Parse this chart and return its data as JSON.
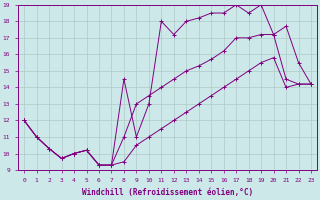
{
  "xlabel": "Windchill (Refroidissement éolien,°C)",
  "bg_color": "#cce8e8",
  "line_color": "#800080",
  "grid_color": "#b0c8c8",
  "xlim": [
    -0.5,
    23.5
  ],
  "ylim": [
    9,
    19
  ],
  "xticks": [
    0,
    1,
    2,
    3,
    4,
    5,
    6,
    7,
    8,
    9,
    10,
    11,
    12,
    13,
    14,
    15,
    16,
    17,
    18,
    19,
    20,
    21,
    22,
    23
  ],
  "yticks": [
    9,
    10,
    11,
    12,
    13,
    14,
    15,
    16,
    17,
    18,
    19
  ],
  "line1_x": [
    0,
    1,
    2,
    3,
    4,
    5,
    6,
    7,
    8,
    9,
    10,
    11,
    12,
    13,
    14,
    15,
    16,
    17,
    18,
    19,
    20,
    21,
    22,
    23
  ],
  "line1_y": [
    12,
    11,
    10.3,
    9.7,
    10,
    10.2,
    9.3,
    9.3,
    14.5,
    11.0,
    13.0,
    18.0,
    17.2,
    18.0,
    18.2,
    18.5,
    18.5,
    19.0,
    18.5,
    19.0,
    17.2,
    17.7,
    15.5,
    14.2
  ],
  "line2_x": [
    0,
    1,
    2,
    3,
    4,
    5,
    6,
    7,
    8,
    9,
    10,
    11,
    12,
    13,
    14,
    15,
    16,
    17,
    18,
    19,
    20,
    21,
    22,
    23
  ],
  "line2_y": [
    12.0,
    11.0,
    10.3,
    9.7,
    10.0,
    10.2,
    9.3,
    9.3,
    11.0,
    13.0,
    13.5,
    14.0,
    14.5,
    15.0,
    15.3,
    15.7,
    16.2,
    17.0,
    17.0,
    17.2,
    17.2,
    14.5,
    14.2,
    14.2
  ],
  "line3_x": [
    0,
    1,
    2,
    3,
    4,
    5,
    6,
    7,
    8,
    9,
    10,
    11,
    12,
    13,
    14,
    15,
    16,
    17,
    18,
    19,
    20,
    21,
    22,
    23
  ],
  "line3_y": [
    12.0,
    11.0,
    10.3,
    9.7,
    10.0,
    10.2,
    9.3,
    9.3,
    9.5,
    10.5,
    11.0,
    11.5,
    12.0,
    12.5,
    13.0,
    13.5,
    14.0,
    14.5,
    15.0,
    15.5,
    15.8,
    14.0,
    14.2,
    14.2
  ]
}
